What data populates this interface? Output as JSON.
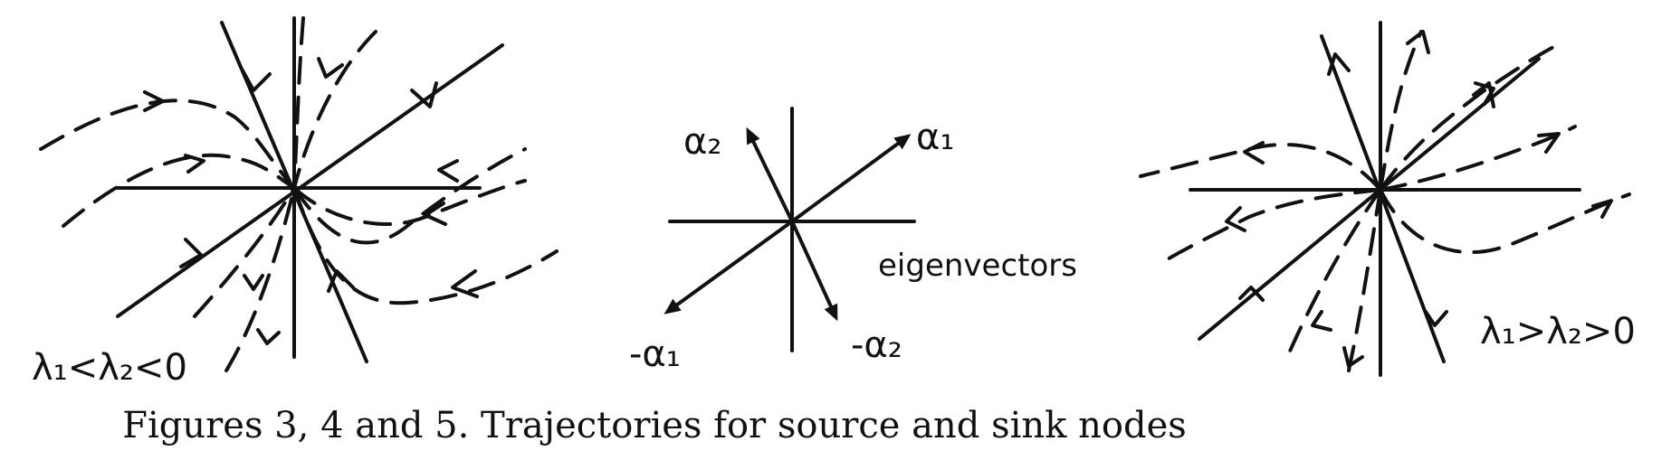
{
  "figures": [
    {
      "id": "fig3",
      "label": "λ₁<λ₂<0"
    },
    {
      "id": "fig4",
      "labels": {
        "alpha1": "α₁",
        "alpha2": "α₂",
        "neg_alpha1": "-α₁",
        "neg_alpha2": "-α₂",
        "caption": "eigenvectors"
      }
    },
    {
      "id": "fig5",
      "label": "λ₁>λ₂>0"
    }
  ],
  "caption": "Figures 3, 4 and 5. Trajectories for source and sink nodes"
}
